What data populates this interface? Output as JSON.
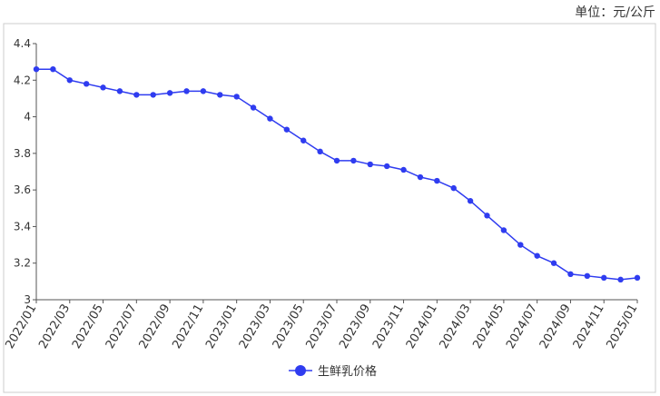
{
  "chart_data": {
    "type": "line",
    "unit_label": "单位：元/公斤",
    "categories": [
      "2022/01",
      null,
      "2022/03",
      null,
      "2022/05",
      null,
      "2022/07",
      null,
      "2022/09",
      null,
      "2022/11",
      null,
      "2023/01",
      null,
      "2023/03",
      null,
      "2023/05",
      null,
      "2023/07",
      null,
      "2023/09",
      null,
      "2023/11",
      null,
      "2024/01",
      null,
      "2024/03",
      null,
      "2024/05",
      null,
      "2024/07",
      null,
      "2024/09",
      null,
      "2024/11",
      null,
      "2025/01"
    ],
    "series": [
      {
        "name": "生鲜乳价格",
        "color": "#2f3cf0",
        "values": [
          4.26,
          4.26,
          4.2,
          4.18,
          4.16,
          4.14,
          4.12,
          4.12,
          4.13,
          4.14,
          4.14,
          4.12,
          4.11,
          4.05,
          3.99,
          3.93,
          3.87,
          3.81,
          3.76,
          3.76,
          3.74,
          3.73,
          3.71,
          3.67,
          3.65,
          3.61,
          3.54,
          3.46,
          3.38,
          3.3,
          3.24,
          3.2,
          3.14,
          3.13,
          3.12,
          3.11,
          3.12
        ]
      }
    ],
    "ylim": [
      3,
      4.4
    ],
    "yticks": [
      3,
      3.2,
      3.4,
      3.6,
      3.8,
      4,
      4.2,
      4.4
    ],
    "grid": false,
    "legend": "bottom"
  }
}
